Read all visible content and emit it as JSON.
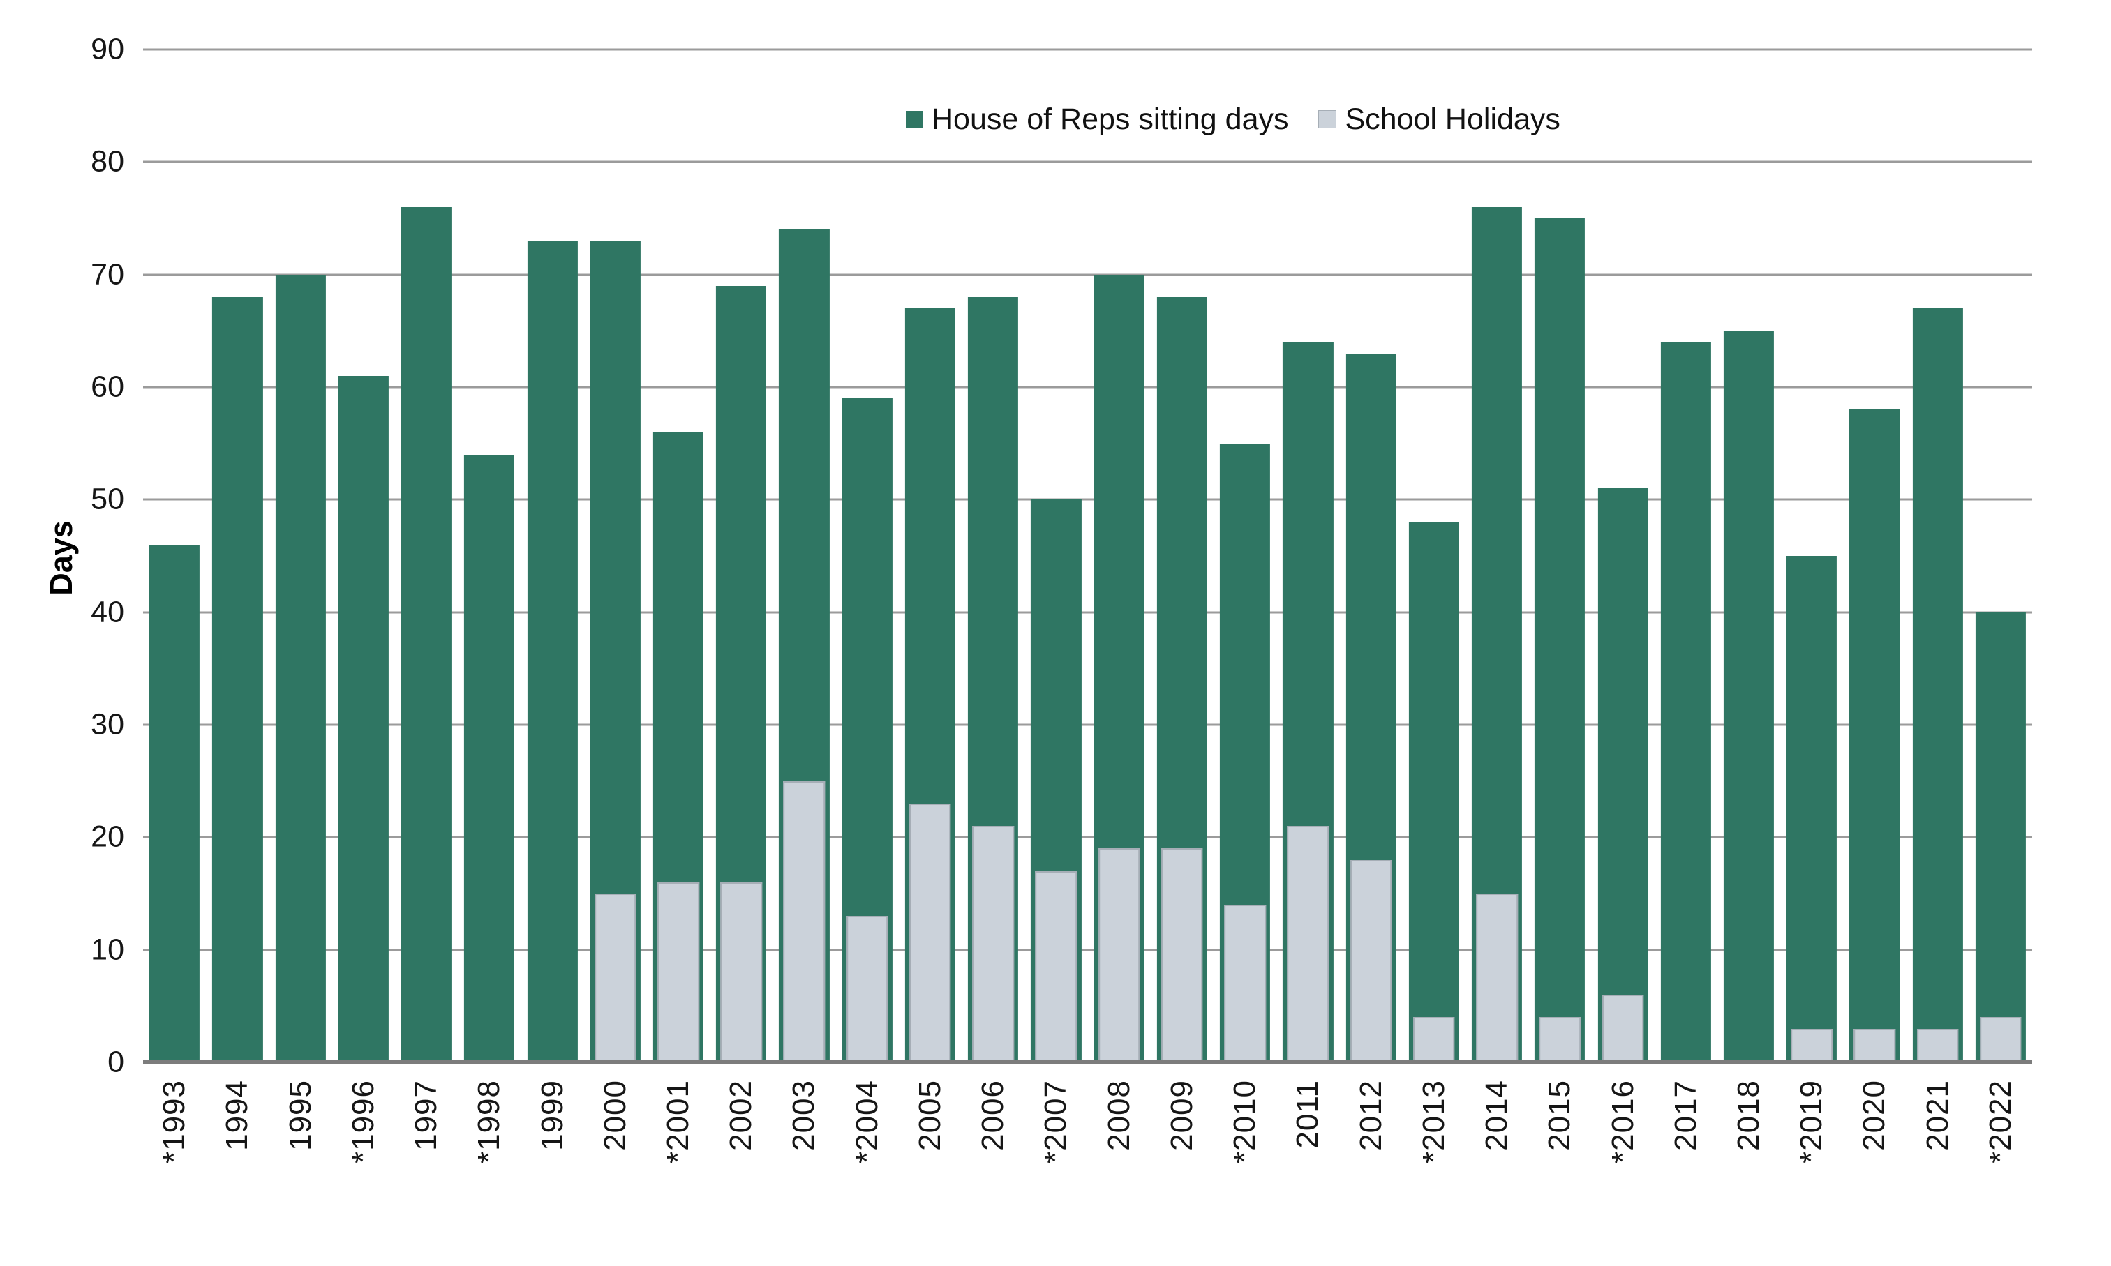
{
  "y_axis": {
    "title": "Days",
    "ticks": [
      90,
      80,
      70,
      60,
      50,
      40,
      30,
      20,
      10,
      0
    ]
  },
  "legend": {
    "items": [
      {
        "label": "House of Reps sitting days",
        "color": "#2f7663"
      },
      {
        "label": "School Holidays",
        "color": "#cbd2da"
      }
    ]
  },
  "colors": {
    "sitting_bar": "#2f7663",
    "holiday_bar": "#cbd2da",
    "holiday_bar_border": "#a6aeb6",
    "gridline": "#9b9b9b",
    "axis_line": "#7c7c7c"
  },
  "chart_data": {
    "type": "bar",
    "title": "",
    "xlabel": "",
    "ylabel": "Days",
    "ylim": [
      0,
      90
    ],
    "y_tick_step": 10,
    "grid": true,
    "legend_position": "top",
    "categories": [
      "*1993",
      "1994",
      "1995",
      "*1996",
      "1997",
      "*1998",
      "1999",
      "2000",
      "*2001",
      "2002",
      "2003",
      "*2004",
      "2005",
      "2006",
      "*2007",
      "2008",
      "2009",
      "*2010",
      "2011",
      "2012",
      "*2013",
      "2014",
      "2015",
      "*2016",
      "2017",
      "2018",
      "*2019",
      "2020",
      "2021",
      "*2022"
    ],
    "series": [
      {
        "name": "House of Reps sitting days",
        "color": "#2f7663",
        "values": [
          46,
          68,
          70,
          61,
          76,
          54,
          73,
          73,
          56,
          69,
          74,
          59,
          67,
          68,
          50,
          70,
          68,
          55,
          64,
          63,
          48,
          76,
          75,
          51,
          64,
          65,
          45,
          58,
          67,
          40
        ]
      },
      {
        "name": "School Holidays",
        "color": "#cbd2da",
        "values": [
          null,
          null,
          null,
          null,
          null,
          null,
          null,
          15,
          16,
          16,
          25,
          13,
          23,
          21,
          17,
          19,
          19,
          14,
          21,
          18,
          4,
          15,
          4,
          6,
          null,
          null,
          3,
          3,
          3,
          4
        ]
      }
    ]
  }
}
